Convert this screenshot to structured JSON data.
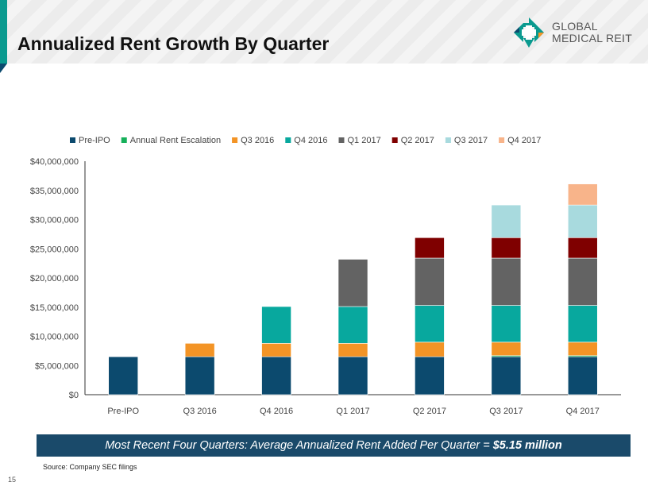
{
  "header": {
    "title": "Annualized Rent Growth By Quarter",
    "logo_line1": "GLOBAL",
    "logo_line2": "MEDICAL REIT"
  },
  "banner": {
    "text": "Most Recent Four Quarters: Average Annualized Rent Added Per Quarter =",
    "value": "$5.15 million"
  },
  "footer": {
    "source": "Source: Company SEC filings",
    "page": "15"
  },
  "chart_data": {
    "type": "bar",
    "stacked": true,
    "title": "",
    "xlabel": "",
    "ylabel": "",
    "ylim": [
      0,
      40000000
    ],
    "yticks": [
      "$0",
      "$5,000,000",
      "$10,000,000",
      "$15,000,000",
      "$20,000,000",
      "$25,000,000",
      "$30,000,000",
      "$35,000,000",
      "$40,000,000"
    ],
    "categories": [
      "Pre-IPO",
      "Q3 2016",
      "Q4 2016",
      "Q1 2017",
      "Q2 2017",
      "Q3 2017",
      "Q4 2017"
    ],
    "legend_position": "top",
    "series": [
      {
        "name": "Pre-IPO",
        "color": "#0c4a6e",
        "values": [
          6500000,
          6500000,
          6500000,
          6500000,
          6500000,
          6500000,
          6500000
        ]
      },
      {
        "name": "Annual Rent Escalation",
        "color": "#16b05a",
        "values": [
          0,
          0,
          0,
          0,
          0,
          200000,
          200000
        ]
      },
      {
        "name": "Q3 2016",
        "color": "#f39426",
        "values": [
          0,
          2300000,
          2300000,
          2300000,
          2500000,
          2300000,
          2300000
        ]
      },
      {
        "name": "Q4 2016",
        "color": "#08a89e",
        "values": [
          0,
          0,
          6300000,
          6300000,
          6300000,
          6300000,
          6300000
        ]
      },
      {
        "name": "Q1 2017",
        "color": "#636363",
        "values": [
          0,
          0,
          0,
          8100000,
          8100000,
          8100000,
          8100000
        ]
      },
      {
        "name": "Q2 2017",
        "color": "#7f0000",
        "values": [
          0,
          0,
          0,
          0,
          3500000,
          3500000,
          3500000
        ]
      },
      {
        "name": "Q3 2017",
        "color": "#a8dade",
        "values": [
          0,
          0,
          0,
          0,
          0,
          5600000,
          5600000
        ]
      },
      {
        "name": "Q4 2017",
        "color": "#f8b48a",
        "values": [
          0,
          0,
          0,
          0,
          0,
          0,
          3600000
        ]
      }
    ]
  }
}
